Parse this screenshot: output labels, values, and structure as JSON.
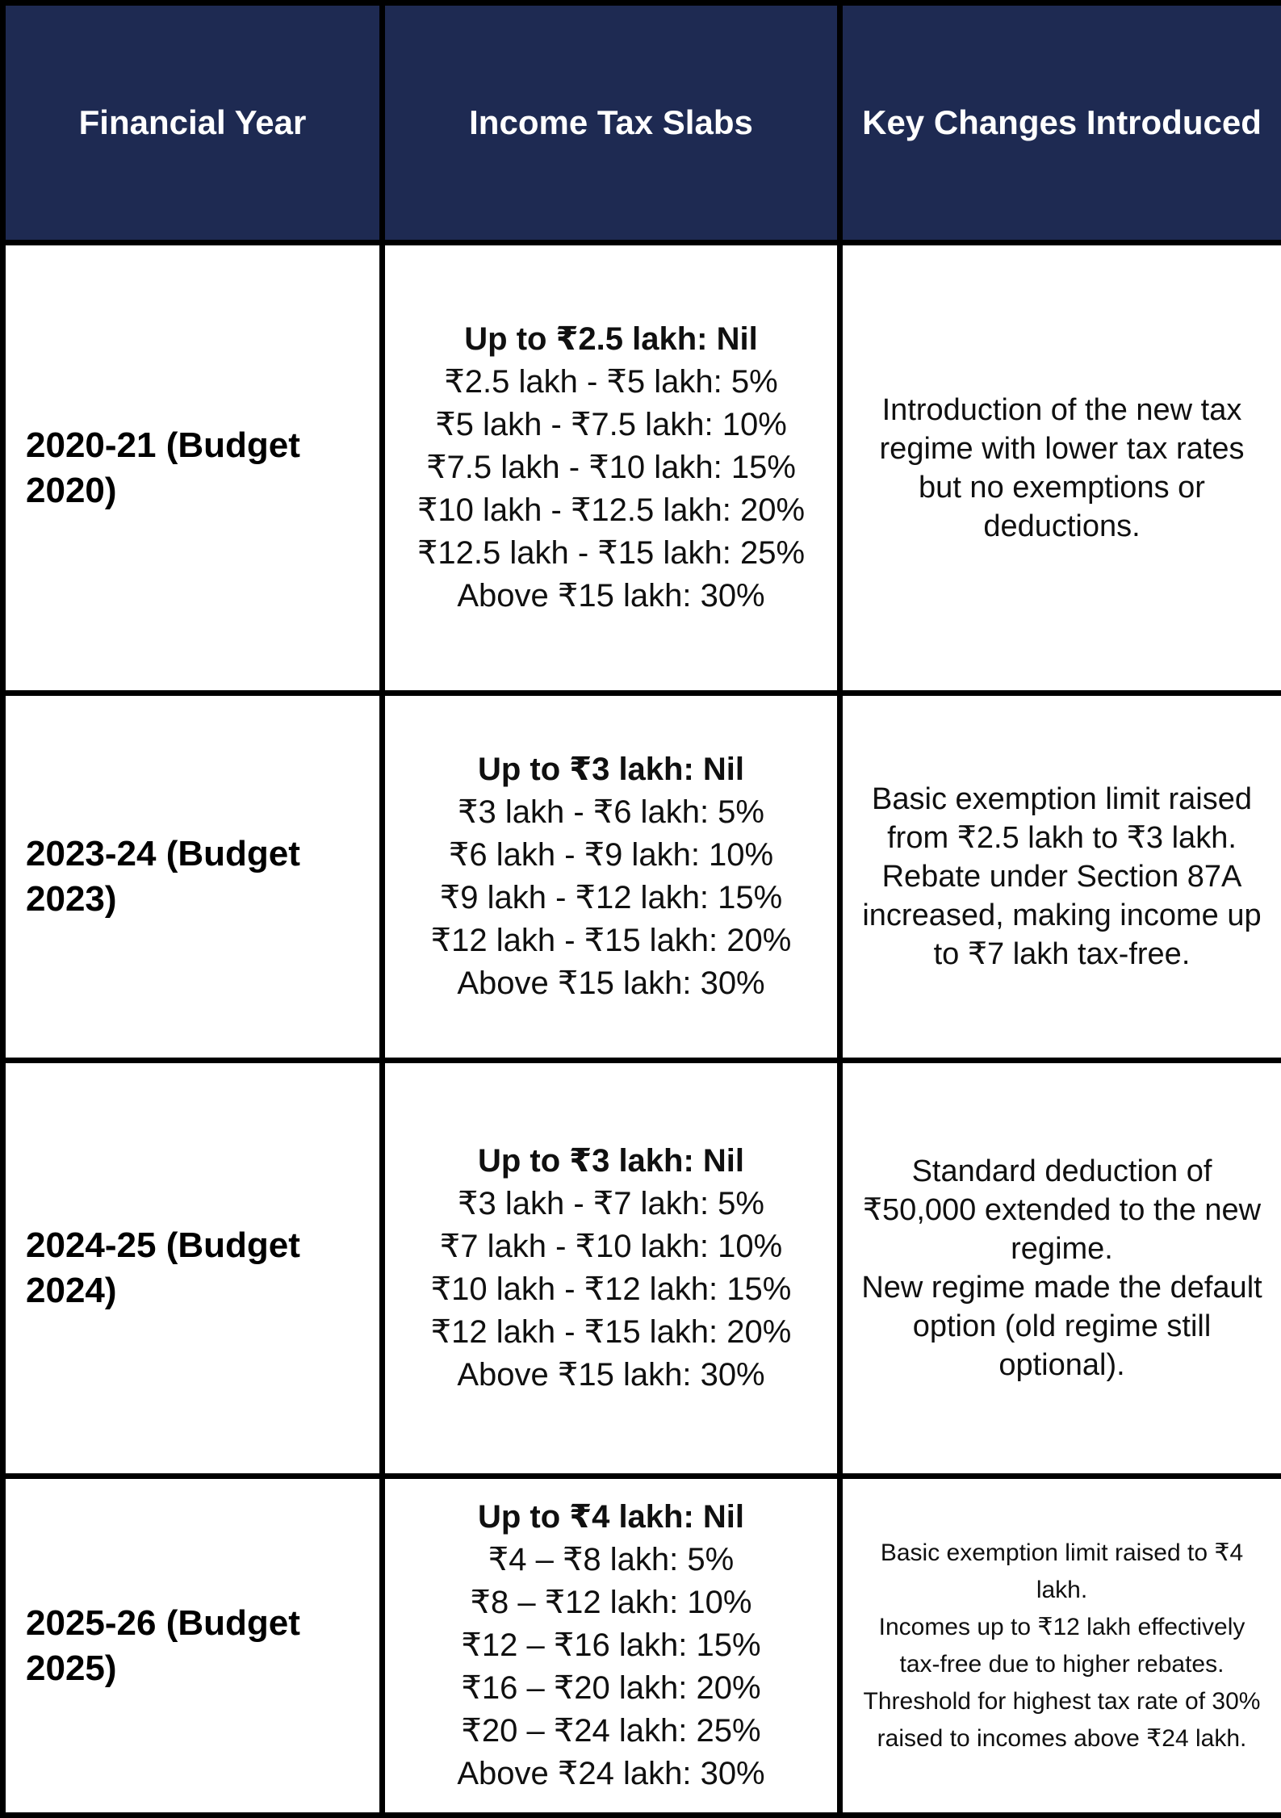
{
  "table": {
    "columns": [
      "Financial Year",
      "Income Tax Slabs",
      "Key Changes Introduced"
    ],
    "rows": [
      {
        "year": "2020-21 (Budget\n2020)",
        "slabs": [
          "Up to ₹2.5 lakh: Nil",
          "₹2.5 lakh - ₹5 lakh: 5%",
          "₹5 lakh - ₹7.5 lakh: 10%",
          "₹7.5 lakh - ₹10 lakh: 15%",
          "₹10 lakh - ₹12.5 lakh: 20%",
          "₹12.5 lakh - ₹15 lakh: 25%",
          "Above ₹15 lakh: 30%"
        ],
        "changes": [
          "Introduction of the new tax regime with lower tax rates but no exemptions or deductions."
        ]
      },
      {
        "year": "2023-24 (Budget\n2023)",
        "slabs": [
          "Up to ₹3 lakh: Nil",
          "₹3 lakh - ₹6 lakh: 5%",
          "₹6 lakh - ₹9 lakh: 10%",
          "₹9 lakh - ₹12 lakh: 15%",
          "₹12 lakh - ₹15 lakh: 20%",
          "Above ₹15 lakh: 30%"
        ],
        "changes": [
          "Basic exemption limit raised from ₹2.5 lakh to ₹3 lakh.",
          "Rebate under Section 87A increased, making income up to ₹7 lakh tax-free."
        ]
      },
      {
        "year": "2024-25 (Budget\n2024)",
        "slabs": [
          "Up to ₹3 lakh: Nil",
          "₹3 lakh - ₹7 lakh: 5%",
          "₹7 lakh - ₹10 lakh: 10%",
          "₹10 lakh - ₹12 lakh: 15%",
          "₹12 lakh - ₹15 lakh: 20%",
          "Above ₹15 lakh: 30%"
        ],
        "changes": [
          "Standard deduction of ₹50,000 extended to the new regime.",
          "New regime made the default option (old regime still optional)."
        ]
      },
      {
        "year": "2025-26 (Budget\n2025)",
        "slabs": [
          "Up to ₹4 lakh: Nil",
          "₹4 – ₹8 lakh: 5%",
          "₹8 – ₹12 lakh: 10%",
          "₹12 – ₹16 lakh: 15%",
          "₹16 – ₹20 lakh: 20%",
          "₹20 – ₹24 lakh: 25%",
          "Above ₹24 lakh: 30%"
        ],
        "changes": [
          "Basic exemption limit raised to ₹4 lakh.",
          "Incomes up to ₹12 lakh effectively tax-free due to higher rebates.",
          "Threshold for highest tax rate of 30% raised to incomes above ₹24 lakh."
        ]
      }
    ],
    "colors": {
      "header_bg": "#1e2a52",
      "header_text": "#ffffff",
      "border": "#000000",
      "body_text": "#101010"
    }
  }
}
